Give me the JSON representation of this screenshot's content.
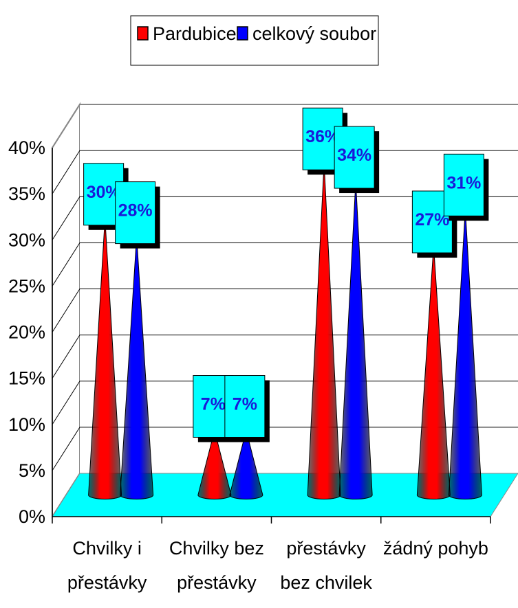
{
  "chart_data": {
    "type": "bar",
    "style": "3d-cone",
    "categories": [
      [
        "Chvilky i",
        "přestávky"
      ],
      [
        "Chvilky bez",
        "přestávky"
      ],
      [
        "přestávky",
        "bez chvilek"
      ],
      [
        "žádný pohyb"
      ]
    ],
    "series": [
      {
        "name": "Pardubice",
        "color": "#ff0000",
        "values": [
          30,
          7,
          36,
          27
        ],
        "labels": [
          "30%",
          "7%",
          "36%",
          "27%"
        ]
      },
      {
        "name": "celkový soubor",
        "color": "#0000ff",
        "values": [
          28,
          7,
          34,
          31
        ],
        "labels": [
          "28%",
          "7%",
          "34%",
          "31%"
        ]
      }
    ],
    "ylim": [
      0,
      40
    ],
    "yticks": [
      "0%",
      "5%",
      "10%",
      "15%",
      "20%",
      "25%",
      "30%",
      "35%",
      "40%"
    ],
    "grid": true,
    "legend": "top-center",
    "floor_color": "#00ffff",
    "label_box_color": "#00ffff"
  }
}
